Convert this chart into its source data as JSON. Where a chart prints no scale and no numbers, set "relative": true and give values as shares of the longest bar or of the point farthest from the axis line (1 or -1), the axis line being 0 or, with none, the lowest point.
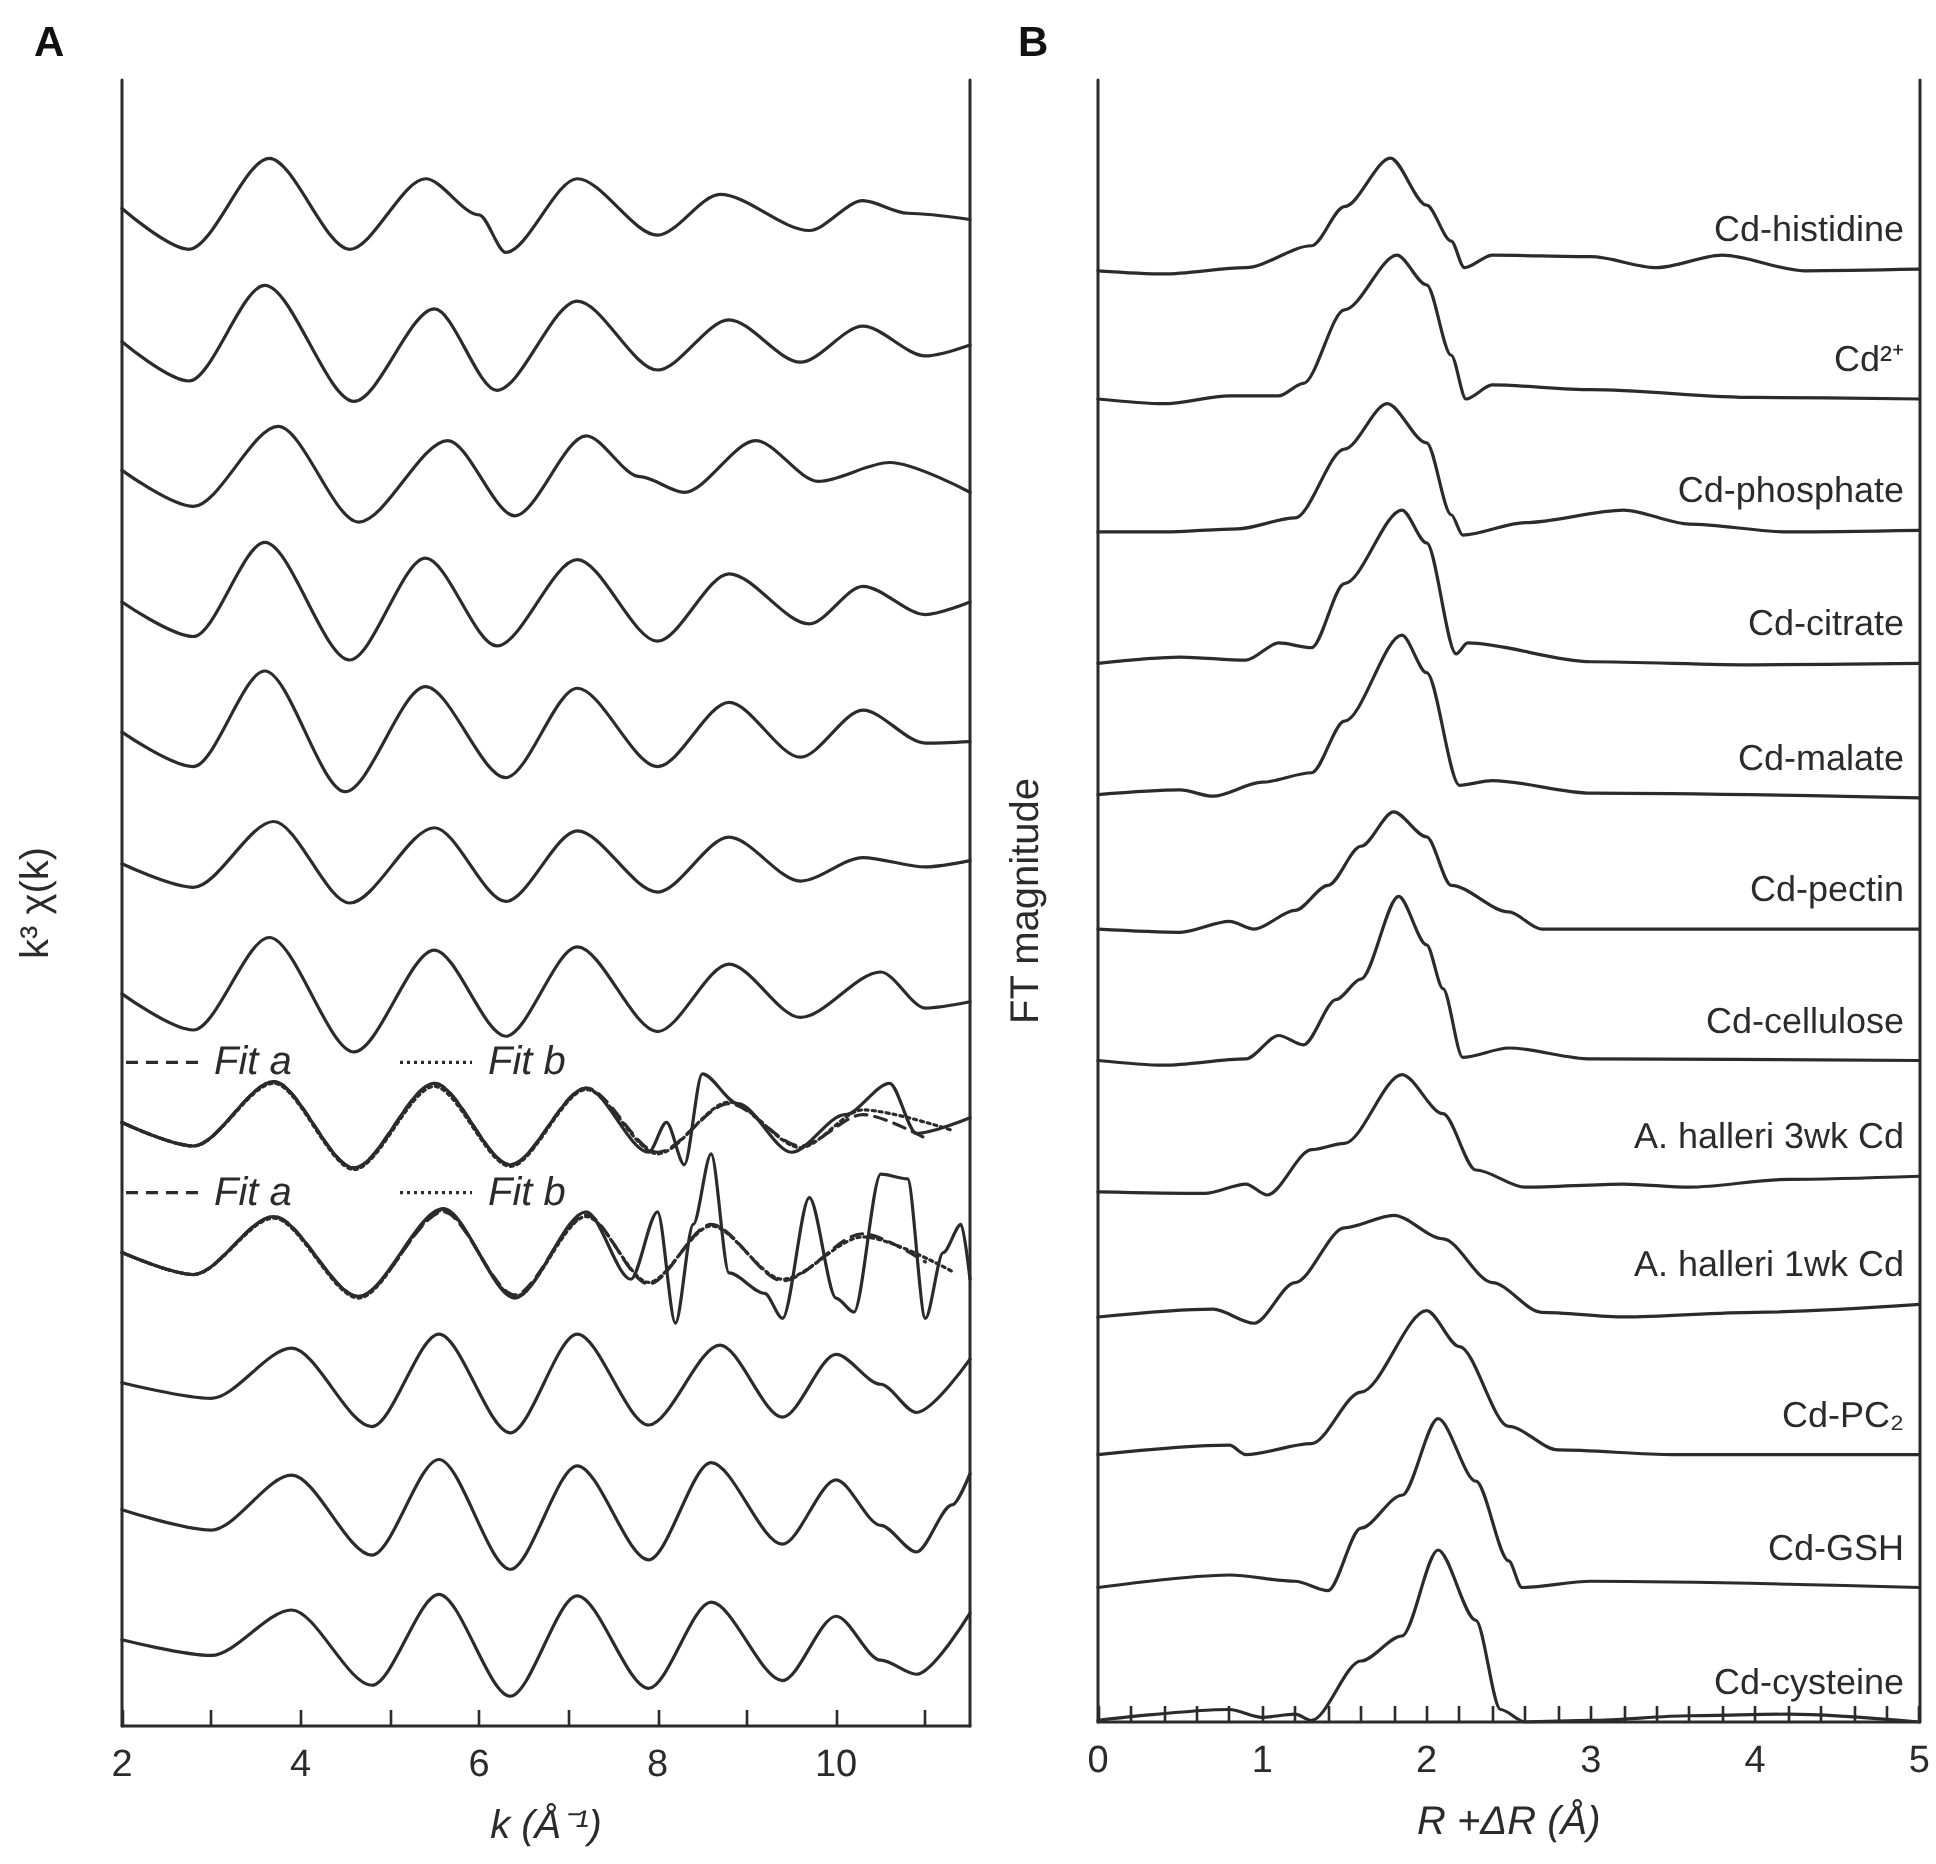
{
  "chart_data": [
    {
      "type": "line",
      "title": "A",
      "xlabel": "k (Å⁻¹)",
      "ylabel": "k³ χ(k)",
      "relative": true,
      "marker": "none",
      "grid": false,
      "tick_labels": "x",
      "xlim": [
        2,
        11.5
      ],
      "xticks": [
        2,
        {
          "value": 3,
          "label": null
        },
        4,
        {
          "value": 5,
          "label": null
        },
        6,
        {
          "value": 7,
          "label": null
        },
        8,
        {
          "value": 9,
          "label": null
        },
        10,
        {
          "value": 11,
          "label": null
        }
      ],
      "legend": "left",
      "series": [
        {
          "color": "#2b2b2b",
          "x": [
            2,
            2.75,
            3.65,
            4.55,
            5.4,
            6.0,
            6.3,
            7.1,
            8.0,
            8.7,
            9.7,
            10.3,
            10.8,
            11.5
          ],
          "values": [
            0.968,
            0.942,
            1.0,
            0.942,
            0.987,
            0.964,
            0.94,
            0.987,
            0.951,
            0.977,
            0.954,
            0.973,
            0.965,
            0.961
          ]
        },
        {
          "color": "#2b2b2b",
          "x": [
            2,
            2.75,
            3.6,
            4.6,
            5.5,
            6.2,
            7.1,
            8.0,
            8.8,
            9.6,
            10.3,
            11.0,
            11.5
          ],
          "values": [
            0.883,
            0.858,
            0.919,
            0.845,
            0.904,
            0.852,
            0.909,
            0.865,
            0.897,
            0.87,
            0.893,
            0.874,
            0.881
          ]
        },
        {
          "color": "#2b2b2b",
          "x": [
            2,
            2.8,
            3.75,
            4.65,
            5.65,
            6.4,
            7.2,
            7.8,
            8.3,
            9.1,
            9.8,
            10.6,
            11.5
          ],
          "values": [
            0.801,
            0.778,
            0.829,
            0.768,
            0.82,
            0.772,
            0.823,
            0.797,
            0.787,
            0.82,
            0.794,
            0.806,
            0.787
          ]
        },
        {
          "color": "#2b2b2b",
          "x": [
            2,
            2.8,
            3.6,
            4.55,
            5.4,
            6.2,
            7.1,
            8.0,
            8.8,
            9.7,
            10.3,
            11.0,
            11.5
          ],
          "values": [
            0.717,
            0.695,
            0.755,
            0.68,
            0.745,
            0.689,
            0.744,
            0.692,
            0.735,
            0.703,
            0.727,
            0.709,
            0.717
          ]
        },
        {
          "color": "#2b2b2b",
          "x": [
            2,
            2.8,
            3.6,
            4.5,
            5.4,
            6.3,
            7.1,
            8.0,
            8.8,
            9.6,
            10.3,
            11.0,
            11.5
          ],
          "values": [
            0.634,
            0.612,
            0.673,
            0.596,
            0.663,
            0.605,
            0.662,
            0.612,
            0.653,
            0.618,
            0.648,
            0.627,
            0.628
          ]
        },
        {
          "color": "#2b2b2b",
          "x": [
            2,
            2.8,
            3.7,
            4.55,
            5.5,
            6.3,
            7.1,
            8.0,
            8.8,
            9.6,
            10.3,
            11.0,
            11.5
          ],
          "values": [
            0.55,
            0.535,
            0.577,
            0.525,
            0.573,
            0.526,
            0.571,
            0.532,
            0.567,
            0.539,
            0.554,
            0.548,
            0.552
          ]
        },
        {
          "color": "#2b2b2b",
          "x": [
            2,
            2.8,
            3.65,
            4.6,
            5.5,
            6.3,
            7.1,
            8.0,
            8.8,
            9.6,
            10.5,
            11.0,
            11.5
          ],
          "values": [
            0.467,
            0.444,
            0.503,
            0.43,
            0.495,
            0.44,
            0.497,
            0.443,
            0.486,
            0.452,
            0.481,
            0.458,
            0.462
          ]
        },
        {
          "color": "#2b2b2b",
          "x": [
            2,
            2.8,
            3.7,
            4.6,
            5.5,
            6.35,
            7.2,
            7.9,
            8.1,
            8.3,
            8.5,
            8.9,
            9.5,
            10.1,
            10.6,
            10.9,
            11.5
          ],
          "values": [
            0.385,
            0.37,
            0.411,
            0.356,
            0.41,
            0.358,
            0.407,
            0.366,
            0.385,
            0.358,
            0.416,
            0.397,
            0.366,
            0.39,
            0.41,
            0.378,
            0.388
          ]
        },
        {
          "name": "Fit a",
          "color": "#2b2b2b",
          "line_style": "dashed",
          "x": [
            2,
            2.8,
            3.7,
            4.6,
            5.5,
            6.35,
            7.2,
            8.0,
            8.8,
            9.6,
            10.3,
            11.0
          ],
          "values": [
            0.385,
            0.37,
            0.411,
            0.356,
            0.41,
            0.358,
            0.407,
            0.366,
            0.397,
            0.37,
            0.39,
            0.375
          ]
        },
        {
          "name": "Fit b",
          "color": "#2b2b2b",
          "line_style": "dotted",
          "x": [
            2,
            2.8,
            3.7,
            4.6,
            5.5,
            6.35,
            7.2,
            8.0,
            8.8,
            9.6,
            10.3,
            11.3
          ],
          "values": [
            0.385,
            0.37,
            0.41,
            0.355,
            0.408,
            0.357,
            0.406,
            0.365,
            0.398,
            0.369,
            0.393,
            0.38
          ]
        },
        {
          "color": "#2b2b2b",
          "x": [
            2,
            2.8,
            3.7,
            4.65,
            5.6,
            6.4,
            7.2,
            7.7,
            8.0,
            8.2,
            8.4,
            8.6,
            8.8,
            9.2,
            9.4,
            9.7,
            10.0,
            10.2,
            10.5,
            10.8,
            11.0,
            11.2,
            11.4,
            11.5
          ],
          "values": [
            0.302,
            0.288,
            0.325,
            0.274,
            0.33,
            0.273,
            0.328,
            0.285,
            0.328,
            0.257,
            0.32,
            0.365,
            0.289,
            0.276,
            0.26,
            0.337,
            0.273,
            0.264,
            0.352,
            0.349,
            0.26,
            0.302,
            0.32,
            0.285
          ]
        },
        {
          "name": "Fit a",
          "color": "#2b2b2b",
          "line_style": "dashed",
          "x": [
            2,
            2.8,
            3.7,
            4.65,
            5.6,
            6.4,
            7.2,
            7.9,
            8.6,
            9.4,
            10.3,
            11.0
          ],
          "values": [
            0.302,
            0.288,
            0.325,
            0.274,
            0.328,
            0.275,
            0.326,
            0.282,
            0.32,
            0.284,
            0.314,
            0.296
          ]
        },
        {
          "name": "Fit b",
          "color": "#2b2b2b",
          "line_style": "dotted",
          "x": [
            2,
            2.8,
            3.7,
            4.65,
            5.6,
            6.4,
            7.2,
            7.9,
            8.6,
            9.4,
            10.3,
            11.3
          ],
          "values": [
            0.302,
            0.288,
            0.324,
            0.273,
            0.329,
            0.274,
            0.325,
            0.283,
            0.319,
            0.285,
            0.312,
            0.29
          ]
        },
        {
          "color": "#2b2b2b",
          "x": [
            2,
            3.0,
            3.9,
            4.8,
            5.55,
            6.35,
            7.1,
            7.9,
            8.7,
            9.4,
            10.0,
            10.5,
            10.9,
            11.5
          ],
          "values": [
            0.219,
            0.209,
            0.241,
            0.191,
            0.25,
            0.187,
            0.25,
            0.192,
            0.243,
            0.197,
            0.237,
            0.218,
            0.2,
            0.234
          ]
        },
        {
          "color": "#2b2b2b",
          "x": [
            2,
            3.0,
            3.9,
            4.8,
            5.55,
            6.35,
            7.1,
            7.9,
            8.6,
            9.4,
            10.0,
            10.5,
            10.9,
            11.3,
            11.5
          ],
          "values": [
            0.138,
            0.125,
            0.16,
            0.109,
            0.17,
            0.1,
            0.166,
            0.106,
            0.168,
            0.116,
            0.157,
            0.128,
            0.111,
            0.141,
            0.161
          ]
        },
        {
          "color": "#2b2b2b",
          "x": [
            2,
            3.0,
            3.9,
            4.8,
            5.55,
            6.35,
            7.1,
            7.9,
            8.6,
            9.4,
            10.0,
            10.5,
            10.9,
            11.5
          ],
          "values": [
            0.055,
            0.045,
            0.074,
            0.026,
            0.084,
            0.019,
            0.083,
            0.024,
            0.079,
            0.029,
            0.07,
            0.042,
            0.033,
            0.072
          ]
        }
      ]
    },
    {
      "type": "line",
      "title": "B",
      "xlabel": "R +ΔR (Å)",
      "ylabel": "FT magnitude",
      "relative": true,
      "marker": "none",
      "grid": false,
      "tick_labels": "x",
      "xlim": [
        0,
        5
      ],
      "xticks": [
        0,
        {
          "value": 0.2,
          "label": null
        },
        {
          "value": 0.4,
          "label": null
        },
        {
          "value": 0.6,
          "label": null
        },
        {
          "value": 0.8,
          "label": null
        },
        1,
        {
          "value": 1.2,
          "label": null
        },
        {
          "value": 1.4,
          "label": null
        },
        {
          "value": 1.6,
          "label": null
        },
        {
          "value": 1.8,
          "label": null
        },
        2,
        {
          "value": 2.2,
          "label": null
        },
        {
          "value": 2.4,
          "label": null
        },
        {
          "value": 2.6,
          "label": null
        },
        {
          "value": 2.8,
          "label": null
        },
        3,
        {
          "value": 3.2,
          "label": null
        },
        {
          "value": 3.4,
          "label": null
        },
        {
          "value": 3.6,
          "label": null
        },
        {
          "value": 3.8,
          "label": null
        },
        4,
        {
          "value": 4.2,
          "label": null
        },
        {
          "value": 4.4,
          "label": null
        },
        {
          "value": 4.6,
          "label": null
        },
        {
          "value": 4.8,
          "label": null
        },
        5
      ],
      "series": [
        {
          "name": "Cd-histidine",
          "color": "#2b2b2b",
          "x": [
            0,
            0.4,
            0.9,
            1.3,
            1.5,
            1.78,
            2.0,
            2.15,
            2.23,
            2.4,
            3.0,
            3.4,
            3.8,
            4.3,
            5.0
          ],
          "values": [
            0.928,
            0.926,
            0.93,
            0.944,
            0.969,
            1.0,
            0.97,
            0.947,
            0.93,
            0.938,
            0.937,
            0.93,
            0.938,
            0.928,
            0.929
          ]
        },
        {
          "name": "Cd²⁺",
          "color": "#2b2b2b",
          "x": [
            0,
            0.4,
            0.8,
            1.1,
            1.25,
            1.5,
            1.82,
            2.0,
            2.15,
            2.24,
            2.4,
            3.0,
            4.0,
            5.0
          ],
          "values": [
            0.846,
            0.843,
            0.848,
            0.848,
            0.856,
            0.903,
            0.938,
            0.919,
            0.874,
            0.846,
            0.855,
            0.852,
            0.847,
            0.846
          ]
        },
        {
          "name": "Cd-phosphate",
          "color": "#2b2b2b",
          "x": [
            0,
            0.4,
            0.85,
            1.2,
            1.5,
            1.76,
            2.0,
            2.15,
            2.22,
            2.6,
            3.2,
            3.6,
            4.2,
            5.0
          ],
          "values": [
            0.761,
            0.761,
            0.763,
            0.77,
            0.814,
            0.843,
            0.818,
            0.772,
            0.759,
            0.767,
            0.775,
            0.766,
            0.761,
            0.762
          ]
        },
        {
          "name": "Cd-citrate",
          "color": "#2b2b2b",
          "x": [
            0,
            0.5,
            0.9,
            1.1,
            1.3,
            1.5,
            1.85,
            2.0,
            2.18,
            2.25,
            3.0,
            4.0,
            5.0
          ],
          "values": [
            0.677,
            0.681,
            0.679,
            0.69,
            0.687,
            0.728,
            0.775,
            0.754,
            0.683,
            0.69,
            0.678,
            0.676,
            0.677
          ]
        },
        {
          "name": "Cd-malate",
          "color": "#2b2b2b",
          "x": [
            0,
            0.5,
            0.7,
            1.0,
            1.3,
            1.5,
            1.85,
            2.0,
            2.2,
            2.4,
            3.0,
            5.0
          ],
          "values": [
            0.593,
            0.596,
            0.592,
            0.601,
            0.607,
            0.64,
            0.695,
            0.671,
            0.599,
            0.602,
            0.594,
            0.591
          ]
        },
        {
          "name": "Cd-pectin",
          "color": "#2b2b2b",
          "x": [
            0,
            0.5,
            0.8,
            0.95,
            1.2,
            1.4,
            1.6,
            1.8,
            2.0,
            2.15,
            2.5,
            2.7,
            5.0
          ],
          "values": [
            0.507,
            0.505,
            0.512,
            0.507,
            0.519,
            0.535,
            0.56,
            0.582,
            0.566,
            0.535,
            0.518,
            0.507,
            0.507
          ]
        },
        {
          "name": "Cd-cellulose",
          "color": "#2b2b2b",
          "x": [
            0,
            0.4,
            0.9,
            1.1,
            1.25,
            1.45,
            1.6,
            1.83,
            2.0,
            2.1,
            2.22,
            2.5,
            3.0,
            5.0
          ],
          "values": [
            0.423,
            0.42,
            0.424,
            0.439,
            0.433,
            0.462,
            0.475,
            0.528,
            0.497,
            0.469,
            0.425,
            0.431,
            0.424,
            0.423
          ]
        },
        {
          "name": "A. halleri 3wk Cd",
          "color": "#2b2b2b",
          "x": [
            0,
            0.65,
            0.9,
            1.03,
            1.3,
            1.5,
            1.85,
            2.1,
            2.3,
            2.6,
            3.2,
            3.6,
            4.2,
            5.0
          ],
          "values": [
            0.339,
            0.338,
            0.344,
            0.337,
            0.366,
            0.37,
            0.414,
            0.389,
            0.353,
            0.342,
            0.344,
            0.342,
            0.347,
            0.349
          ]
        },
        {
          "name": "A. halleri 1wk Cd",
          "color": "#2b2b2b",
          "x": [
            0,
            0.7,
            0.95,
            1.2,
            1.5,
            1.8,
            2.1,
            2.4,
            2.7,
            3.2,
            4.0,
            5.0
          ],
          "values": [
            0.259,
            0.264,
            0.255,
            0.281,
            0.316,
            0.324,
            0.309,
            0.281,
            0.262,
            0.259,
            0.262,
            0.267
          ]
        },
        {
          "name": "Cd-PC₂",
          "color": "#2b2b2b",
          "x": [
            0,
            0.8,
            0.9,
            1.3,
            1.6,
            2.0,
            2.2,
            2.5,
            2.8,
            3.5,
            5.0
          ],
          "values": [
            0.171,
            0.177,
            0.171,
            0.178,
            0.211,
            0.263,
            0.24,
            0.189,
            0.174,
            0.171,
            0.171
          ]
        },
        {
          "name": "Cd-GSH",
          "color": "#2b2b2b",
          "x": [
            0,
            0.8,
            1.2,
            1.4,
            1.6,
            1.85,
            2.07,
            2.3,
            2.5,
            2.58,
            3.0,
            5.0
          ],
          "values": [
            0.086,
            0.094,
            0.09,
            0.084,
            0.124,
            0.145,
            0.194,
            0.154,
            0.103,
            0.086,
            0.09,
            0.086
          ]
        },
        {
          "name": "Cd-cysteine",
          "color": "#2b2b2b",
          "x": [
            0,
            0.8,
            1.0,
            1.2,
            1.3,
            1.6,
            1.85,
            2.07,
            2.3,
            2.45,
            2.6,
            3.0,
            3.6,
            4.2,
            5.0
          ],
          "values": [
            0.001,
            0.008,
            0.003,
            0.005,
            0.001,
            0.039,
            0.055,
            0.11,
            0.065,
            0.008,
            0,
            0.001,
            0.004,
            0.005,
            0
          ]
        }
      ]
    }
  ]
}
